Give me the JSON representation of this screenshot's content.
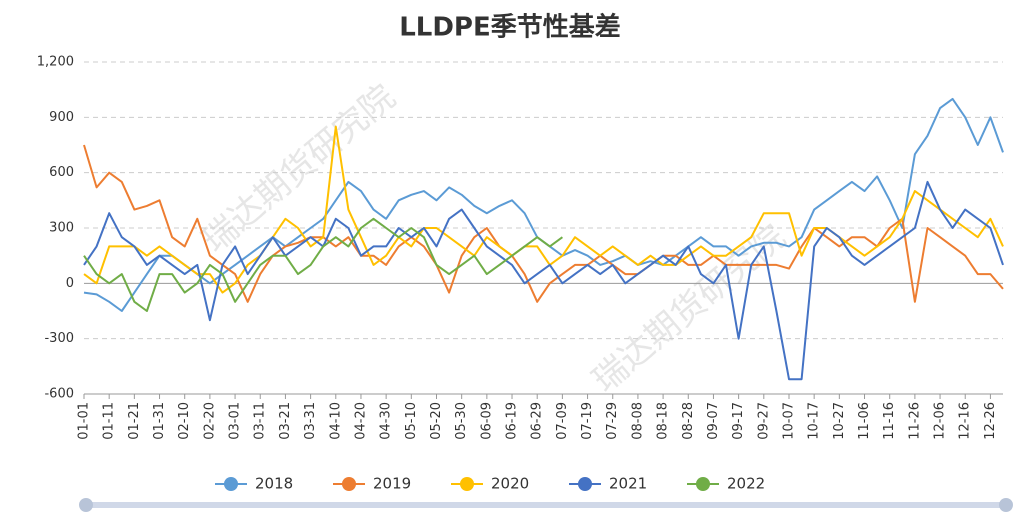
{
  "chart_data": {
    "type": "line",
    "title": "LLDPE季节性基差",
    "watermark": "瑞达期货研究院",
    "categories": [
      "01-01",
      null,
      "01-11",
      null,
      "01-21",
      null,
      "01-31",
      null,
      "02-10",
      null,
      "02-20",
      null,
      "03-01",
      null,
      "03-11",
      null,
      "03-21",
      null,
      "03-31",
      null,
      "04-10",
      null,
      "04-20",
      null,
      "04-30",
      null,
      "05-10",
      null,
      "05-20",
      null,
      "05-30",
      null,
      "06-09",
      null,
      "06-19",
      null,
      "06-29",
      null,
      "07-09",
      null,
      "07-19",
      null,
      "07-29",
      null,
      "08-08",
      null,
      "08-18",
      null,
      "08-28",
      null,
      "09-07",
      null,
      "09-17",
      null,
      "09-27",
      null,
      "10-07",
      null,
      "10-17",
      null,
      "10-27",
      null,
      "11-06",
      null,
      "11-16",
      null,
      "11-26",
      null,
      "12-06",
      null,
      "12-16",
      null,
      "12-26",
      null
    ],
    "series": [
      {
        "name": "2018",
        "color": "#5b9bd5",
        "values": [
          -50,
          -60,
          -100,
          -150,
          -50,
          50,
          150,
          150,
          100,
          50,
          0,
          50,
          100,
          150,
          200,
          250,
          200,
          250,
          300,
          350,
          450,
          550,
          500,
          400,
          350,
          450,
          480,
          500,
          450,
          520,
          480,
          420,
          380,
          420,
          450,
          380,
          250,
          200,
          150,
          180,
          150,
          100,
          120,
          150,
          100,
          120,
          100,
          150,
          200,
          250,
          200,
          200,
          150,
          200,
          220,
          220,
          200,
          250,
          400,
          450,
          500,
          550,
          500,
          580,
          450,
          300,
          700,
          800,
          950,
          1000,
          900,
          750,
          900,
          710
        ]
      },
      {
        "name": "2019",
        "color": "#ed7d31",
        "values": [
          750,
          520,
          600,
          550,
          400,
          420,
          450,
          250,
          200,
          350,
          150,
          100,
          50,
          -100,
          50,
          150,
          200,
          220,
          250,
          250,
          200,
          250,
          150,
          150,
          100,
          200,
          250,
          200,
          100,
          -50,
          150,
          250,
          300,
          200,
          150,
          50,
          -100,
          0,
          50,
          100,
          100,
          150,
          100,
          50,
          50,
          100,
          150,
          150,
          100,
          100,
          150,
          100,
          100,
          100,
          100,
          100,
          80,
          200,
          300,
          250,
          200,
          250,
          250,
          200,
          300,
          350,
          -100,
          300,
          250,
          200,
          150,
          50,
          50,
          -30
        ]
      },
      {
        "name": "2020",
        "color": "#ffc000",
        "values": [
          50,
          0,
          200,
          200,
          200,
          150,
          200,
          150,
          100,
          50,
          50,
          -50,
          0,
          100,
          150,
          250,
          350,
          300,
          200,
          250,
          850,
          400,
          250,
          100,
          150,
          250,
          200,
          300,
          300,
          250,
          200,
          150,
          250,
          200,
          150,
          200,
          200,
          100,
          150,
          250,
          200,
          150,
          200,
          150,
          100,
          150,
          100,
          100,
          150,
          200,
          150,
          150,
          200,
          250,
          380,
          380,
          380,
          150,
          300,
          300,
          250,
          200,
          150,
          200,
          250,
          350,
          500,
          450,
          400,
          350,
          300,
          250,
          350,
          200
        ]
      },
      {
        "name": "2021",
        "color": "#4472c4",
        "values": [
          100,
          200,
          380,
          250,
          200,
          100,
          150,
          100,
          50,
          100,
          -200,
          100,
          200,
          50,
          150,
          250,
          150,
          200,
          250,
          200,
          350,
          300,
          150,
          200,
          200,
          300,
          250,
          300,
          200,
          350,
          400,
          300,
          200,
          150,
          100,
          0,
          50,
          100,
          0,
          50,
          100,
          50,
          100,
          0,
          50,
          100,
          150,
          100,
          200,
          50,
          0,
          100,
          -300,
          100,
          200,
          -150,
          -520,
          -520,
          200,
          300,
          250,
          150,
          100,
          150,
          200,
          250,
          300,
          550,
          400,
          300,
          400,
          350,
          300,
          100
        ]
      },
      {
        "name": "2022",
        "color": "#70ad47",
        "values": [
          150,
          50,
          0,
          50,
          -100,
          -150,
          50,
          50,
          -50,
          0,
          100,
          50,
          -100,
          0,
          100,
          150,
          150,
          50,
          100,
          200,
          250,
          200,
          300,
          350,
          300,
          250,
          300,
          250,
          100,
          50,
          100,
          150,
          50,
          100,
          150,
          200,
          250,
          200,
          250,
          null,
          null,
          null,
          null,
          null,
          null,
          null,
          null,
          null,
          null,
          null,
          null,
          null,
          null,
          null,
          null,
          null,
          null,
          null,
          null,
          null,
          null,
          null,
          null,
          null,
          null,
          null,
          null,
          null,
          null,
          null,
          null,
          null,
          null,
          null
        ]
      }
    ],
    "ylim": [
      -600,
      1200
    ],
    "yticks": [
      {
        "value": 1200,
        "label": "1,200"
      },
      900,
      600,
      300,
      0,
      -300,
      -600
    ],
    "grid": true
  }
}
